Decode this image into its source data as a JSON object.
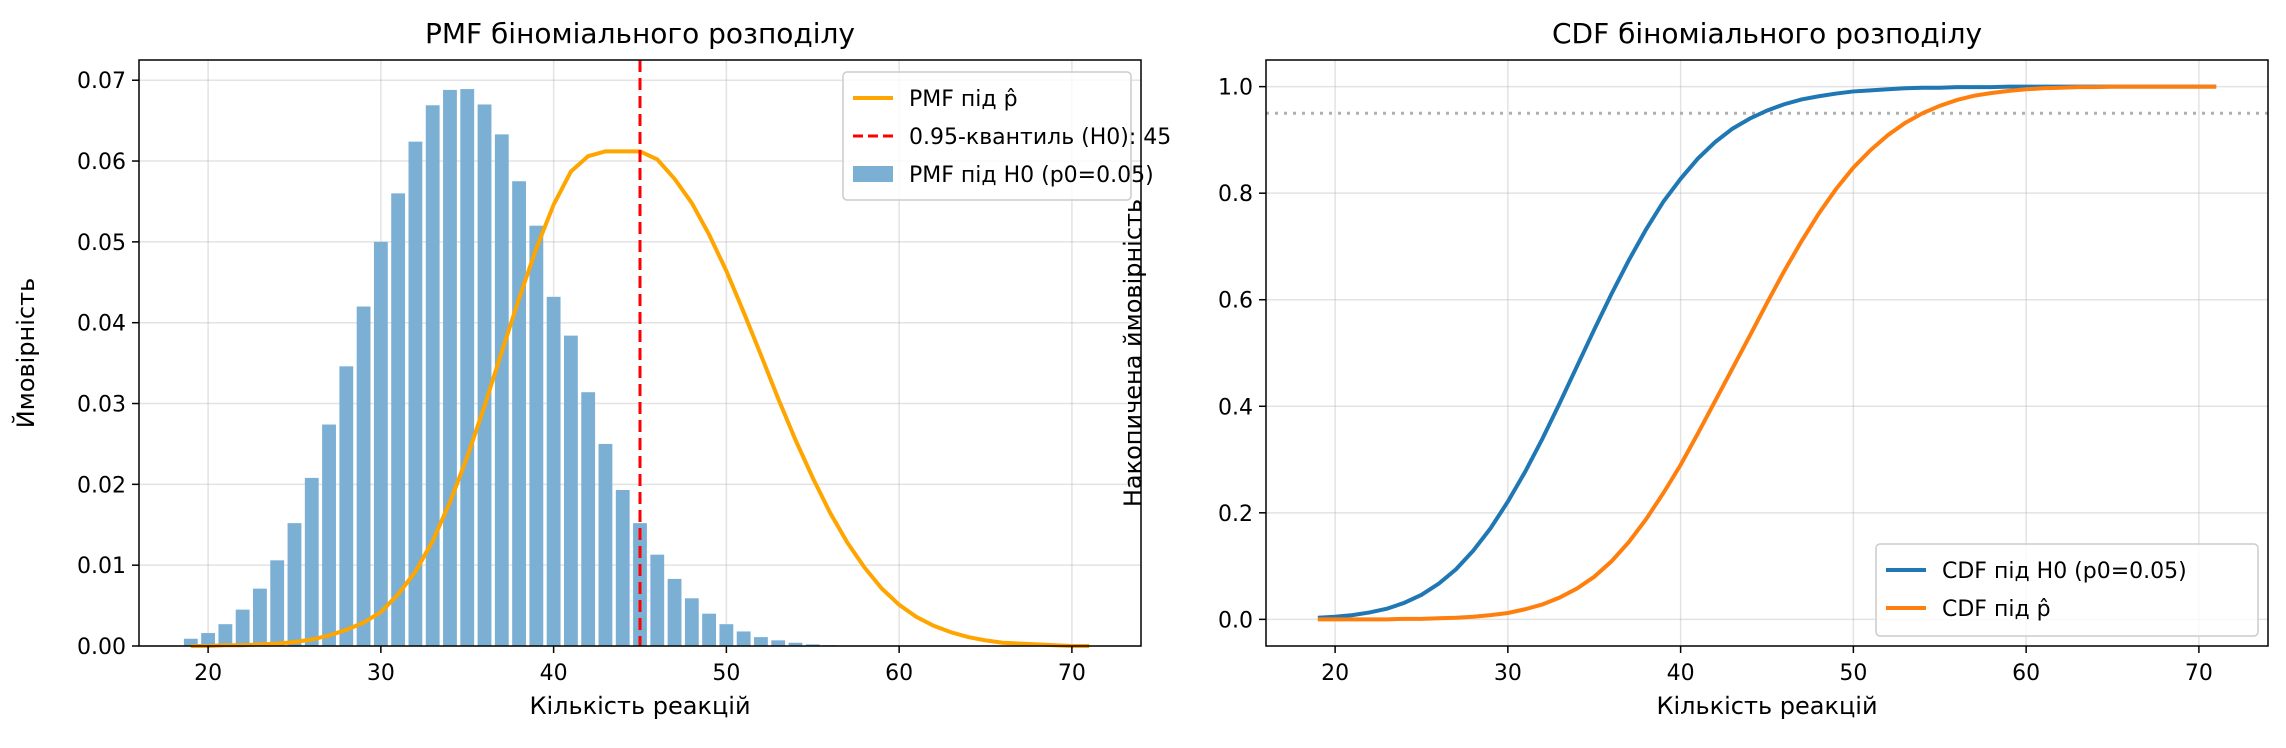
{
  "chart_data": [
    {
      "type": "bar",
      "title": "PMF біноміального розподілу",
      "xlabel": "Кількість реакцій",
      "ylabel": "Ймовірність",
      "xlim": [
        16,
        74
      ],
      "ylim": [
        0,
        0.0725
      ],
      "xticks": [
        20,
        30,
        40,
        50,
        60,
        70
      ],
      "xtick_labels": [
        "20",
        "30",
        "40",
        "50",
        "60",
        "70"
      ],
      "yticks": [
        0,
        0.01,
        0.02,
        0.03,
        0.04,
        0.05,
        0.06,
        0.07
      ],
      "ytick_labels": [
        "0.00",
        "0.01",
        "0.02",
        "0.03",
        "0.04",
        "0.05",
        "0.06",
        "0.07"
      ],
      "grid": true,
      "legend_position": "top-right",
      "bar_series": {
        "name": "PMF під H0 (p0=0.05)",
        "color": "#7bafd4",
        "x": [
          19,
          20,
          21,
          22,
          23,
          24,
          25,
          26,
          27,
          28,
          29,
          30,
          31,
          32,
          33,
          34,
          35,
          36,
          37,
          38,
          39,
          40,
          41,
          42,
          43,
          44,
          45,
          46,
          47,
          48,
          49,
          50,
          51,
          52,
          53,
          54,
          55,
          56,
          57,
          58
        ],
        "values": [
          0.0009,
          0.0016,
          0.0027,
          0.0045,
          0.0071,
          0.0106,
          0.0152,
          0.0208,
          0.0274,
          0.0346,
          0.042,
          0.05,
          0.056,
          0.0624,
          0.0669,
          0.0688,
          0.0689,
          0.067,
          0.0633,
          0.0575,
          0.052,
          0.0432,
          0.0384,
          0.0314,
          0.025,
          0.0193,
          0.0152,
          0.0113,
          0.0083,
          0.0059,
          0.004,
          0.0027,
          0.0018,
          0.0011,
          0.0007,
          0.0004,
          0.0002,
          0.0001,
          6e-05,
          3e-05
        ]
      },
      "line_series": {
        "name": "PMF під p̂",
        "color": "#ffa500",
        "x": [
          19,
          20,
          21,
          22,
          23,
          24,
          25,
          26,
          27,
          28,
          29,
          30,
          31,
          32,
          33,
          34,
          35,
          36,
          37,
          38,
          39,
          40,
          41,
          42,
          43,
          44,
          45,
          46,
          47,
          48,
          49,
          50,
          51,
          52,
          53,
          54,
          55,
          56,
          57,
          58,
          59,
          60,
          61,
          62,
          63,
          64,
          65,
          66,
          67,
          68,
          69,
          70,
          71
        ],
        "values": [
          0.0,
          0.0,
          0.0001,
          0.0001,
          0.0002,
          0.0003,
          0.0005,
          0.0008,
          0.0013,
          0.002,
          0.0029,
          0.0042,
          0.0064,
          0.0092,
          0.013,
          0.0178,
          0.0234,
          0.0297,
          0.0364,
          0.043,
          0.0492,
          0.0546,
          0.0587,
          0.0606,
          0.0612,
          0.0612,
          0.0612,
          0.0602,
          0.0578,
          0.0548,
          0.0509,
          0.0464,
          0.0413,
          0.036,
          0.0306,
          0.0255,
          0.0208,
          0.0165,
          0.0128,
          0.0097,
          0.0071,
          0.0051,
          0.0036,
          0.0025,
          0.0017,
          0.0011,
          0.0007,
          0.0004,
          0.0003,
          0.0002,
          0.0001,
          0.0,
          0.0
        ]
      },
      "vline": {
        "name": "0.95-квантиль (H0): 45",
        "x": 45,
        "color": "#ff0000"
      }
    },
    {
      "type": "line",
      "title": "CDF біноміального розподілу",
      "xlabel": "Кількість реакцій",
      "ylabel": "Накопичена ймовірність",
      "xlim": [
        16,
        74
      ],
      "ylim": [
        -0.05,
        1.05
      ],
      "xticks": [
        20,
        30,
        40,
        50,
        60,
        70
      ],
      "xtick_labels": [
        "20",
        "30",
        "40",
        "50",
        "60",
        "70"
      ],
      "yticks": [
        0,
        0.2,
        0.4,
        0.6,
        0.8,
        1.0
      ],
      "ytick_labels": [
        "0.0",
        "0.2",
        "0.4",
        "0.6",
        "0.8",
        "1.0"
      ],
      "grid": true,
      "legend_position": "bottom-right",
      "hline": {
        "y": 0.95,
        "color": "#b0b0b0"
      },
      "series": [
        {
          "name": "CDF під H0 (p0=0.05)",
          "color": "#1f77b4",
          "x": [
            19,
            20,
            21,
            22,
            23,
            24,
            25,
            26,
            27,
            28,
            29,
            30,
            31,
            32,
            33,
            34,
            35,
            36,
            37,
            38,
            39,
            40,
            41,
            42,
            43,
            44,
            45,
            46,
            47,
            48,
            49,
            50,
            51,
            52,
            53,
            54,
            55,
            56,
            57,
            58,
            59,
            60,
            61,
            62,
            63,
            64,
            65,
            66,
            67,
            68,
            69,
            70,
            71
          ],
          "values": [
            0.003,
            0.005,
            0.008,
            0.013,
            0.02,
            0.031,
            0.046,
            0.067,
            0.094,
            0.129,
            0.171,
            0.221,
            0.277,
            0.339,
            0.406,
            0.475,
            0.544,
            0.611,
            0.674,
            0.732,
            0.784,
            0.827,
            0.865,
            0.896,
            0.921,
            0.94,
            0.955,
            0.967,
            0.976,
            0.982,
            0.987,
            0.991,
            0.993,
            0.995,
            0.997,
            0.998,
            0.998,
            0.999,
            0.999,
            0.999,
            1.0,
            1.0,
            1.0,
            1.0,
            1.0,
            1.0,
            1.0,
            1.0,
            1.0,
            1.0,
            1.0,
            1.0,
            1.0
          ]
        },
        {
          "name": "CDF під p̂",
          "color": "#ff7f0e",
          "x": [
            19,
            20,
            21,
            22,
            23,
            24,
            25,
            26,
            27,
            28,
            29,
            30,
            31,
            32,
            33,
            34,
            35,
            36,
            37,
            38,
            39,
            40,
            41,
            42,
            43,
            44,
            45,
            46,
            47,
            48,
            49,
            50,
            51,
            52,
            53,
            54,
            55,
            56,
            57,
            58,
            59,
            60,
            61,
            62,
            63,
            64,
            65,
            66,
            67,
            68,
            69,
            70,
            71
          ],
          "values": [
            0.0,
            0.0,
            0.0,
            0.0,
            0.0,
            0.001,
            0.001,
            0.002,
            0.003,
            0.005,
            0.008,
            0.012,
            0.019,
            0.028,
            0.041,
            0.058,
            0.08,
            0.109,
            0.145,
            0.188,
            0.237,
            0.29,
            0.349,
            0.41,
            0.471,
            0.532,
            0.594,
            0.654,
            0.71,
            0.762,
            0.808,
            0.848,
            0.881,
            0.909,
            0.932,
            0.95,
            0.964,
            0.975,
            0.983,
            0.988,
            0.992,
            0.995,
            0.997,
            0.998,
            0.999,
            0.999,
            1.0,
            1.0,
            1.0,
            1.0,
            1.0,
            1.0,
            1.0
          ]
        }
      ]
    }
  ]
}
